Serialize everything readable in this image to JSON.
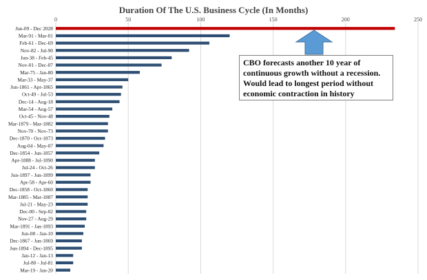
{
  "chart_data": {
    "type": "bar",
    "orientation": "horizontal",
    "title": "Duration Of  The U.S. Business Cycle (In Months)",
    "xlim": [
      0,
      250
    ],
    "xticks": [
      0,
      50,
      100,
      150,
      200,
      250
    ],
    "grid": true,
    "categories": [
      "Jun-09 - Dec 2028",
      "Mar-91 - Mar-01",
      "Feb-61 - Dec-69",
      "Nov-82 - Jul-90",
      "Jun-38 - Feb-45",
      "Nov-01 - Dec-07",
      "Mar-75 - Jan-80",
      "Mar-33 - May-37",
      "Jun-1861 - Apr-1865",
      "Oct-49 - Jul-53",
      "Dec-14 - Aug-18",
      "Mar-54 - Aug-57",
      "Oct-45 - Nov-48",
      "Mar-1879 - Mar-1882",
      "Nov-70 - Nov-73",
      "Dec-1870 - Oct-1873",
      "Aug-04 - May-07",
      "Dec-1854 - Jun-1857",
      "Apr-1888 - Jul-1890",
      "Jul-24 - Oct-26",
      "Jun-1897 - Jun-1899",
      "Apr-58 - Apr-60",
      "Dec-1858 - Oct-1860",
      "Mar-1885 - Mar-1887",
      "Jul-21 - May-23",
      "Dec-00 - Sep-02",
      "Nov-27 - Aug-29",
      "Mar-1891 - Jan-1893",
      "Jun-08 - Jan-10",
      "Dec-1867 - Jun-1869",
      "Jun-1894 - Dec-1895",
      "Jan-12 - Jan-13",
      "Jul-80 - Jul-81",
      "Mar-19 - Jan-20"
    ],
    "values": [
      234,
      120,
      106,
      92,
      80,
      73,
      58,
      50,
      46,
      45,
      44,
      39,
      37,
      36,
      36,
      34,
      33,
      30,
      27,
      27,
      24,
      24,
      22,
      22,
      22,
      21,
      21,
      20,
      19,
      18,
      18,
      12,
      12,
      10
    ],
    "highlight_index": 0,
    "colors": {
      "bar": "#2e4f73",
      "highlight": "#c00000",
      "grid": "#d9d9d9",
      "arrow": "#5b9bd5",
      "label": "#444444"
    },
    "annotation": {
      "lines": [
        "CBO forecasts another 10 year of",
        "continuous growth without a recession.",
        "Would lead to longest period without",
        "economic contraction in history"
      ],
      "arrow_icon": "up-arrow-icon"
    }
  }
}
